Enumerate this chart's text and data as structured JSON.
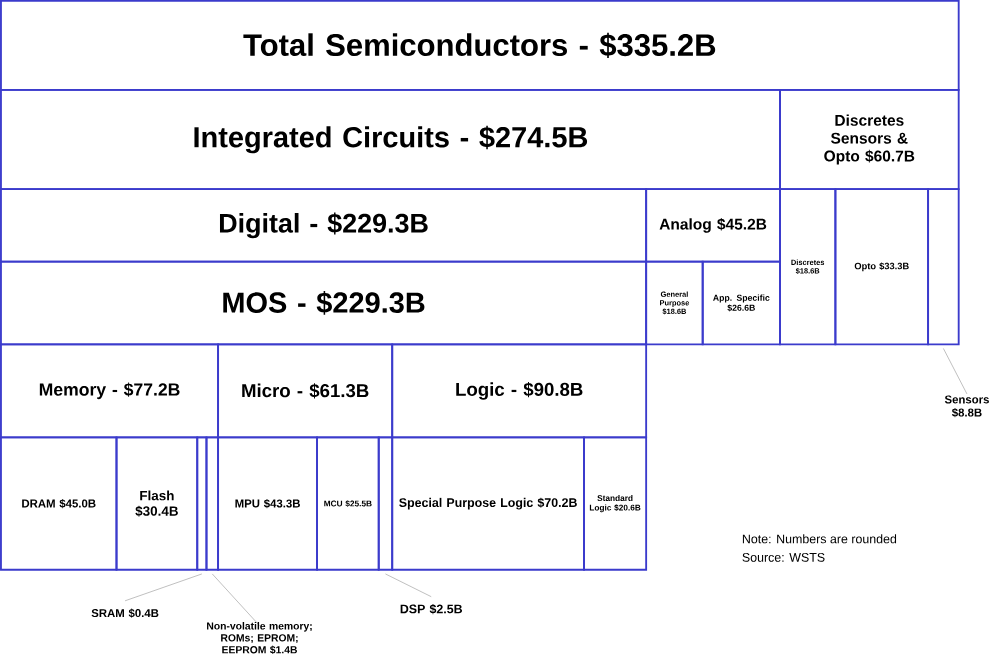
{
  "chart_data": {
    "type": "other",
    "categories": [
      "Total Semiconductors -",
      "Integrated Circuits -",
      "Discretes Sensors & Opto",
      "Digital -",
      "Analog",
      "General Purpose",
      "App. Specific",
      "Discretes",
      "Opto",
      "Sensors",
      "MOS -",
      "Memory -",
      "DRAM",
      "Flash",
      "SRAM",
      "Non-volatile memory; ROMs; EPROM; EEPROM",
      "Micro -",
      "MPU",
      "MCU",
      "DSP",
      "Logic -",
      "Special Purpose Logic",
      "Standard Logic"
    ],
    "value_labels": [
      "$335.2B",
      "$274.5B",
      "$60.7B",
      "$229.3B",
      "$45.2B",
      "$18.6B",
      "$26.6B",
      "$18.6B",
      "$33.3B",
      "$8.8B",
      "$229.3B",
      "$77.2B",
      "$45.0B",
      "$30.4B",
      "$0.4B",
      "$1.4B",
      "$61.3B",
      "$43.3B",
      "$25.5B",
      "$2.5B",
      "$90.8B",
      "$70.2B",
      "$20.6B"
    ],
    "values": [
      335.2,
      274.5,
      60.7,
      229.3,
      45.2,
      18.6,
      26.6,
      18.6,
      33.3,
      8.8,
      229.3,
      77.2,
      45.0,
      30.4,
      0.4,
      1.4,
      61.3,
      43.3,
      25.5,
      2.5,
      90.8,
      70.2,
      20.6
    ],
    "annotations": [
      "Note: Numbers are rounded",
      "Source: WSTS"
    ]
  }
}
